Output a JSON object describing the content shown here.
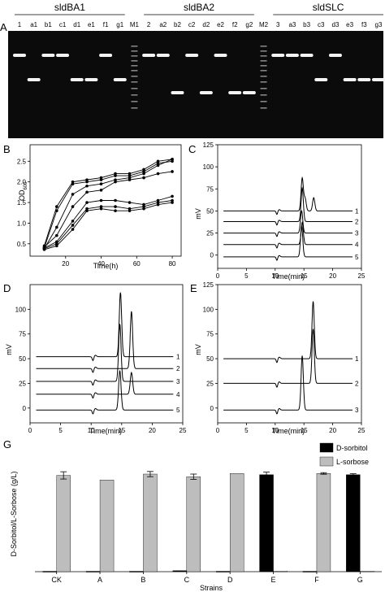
{
  "panel_letters": {
    "A": "A",
    "B": "B",
    "C": "C",
    "D": "D",
    "E": "E",
    "G": "G"
  },
  "gel": {
    "groups": [
      "sldBA1",
      "sldBA2",
      "sldSLC"
    ],
    "lanes": [
      "1",
      "a1",
      "b1",
      "c1",
      "d1",
      "e1",
      "f1",
      "g1",
      "M1",
      "2",
      "a2",
      "b2",
      "c2",
      "d2",
      "e2",
      "f2",
      "g2",
      "M2",
      "3",
      "a3",
      "b3",
      "c3",
      "d3",
      "e3",
      "f3",
      "g3"
    ],
    "band_level": [
      "high",
      "low",
      "high",
      "high",
      "low",
      "low",
      "high",
      "low",
      "marker",
      "high",
      "high",
      "low",
      "high",
      "low",
      "high",
      "low",
      "low",
      "marker",
      "high",
      "high",
      "high",
      "low",
      "high",
      "low",
      "low",
      "low"
    ]
  },
  "chart_data": [
    {
      "type": "line",
      "panel": "B",
      "xlabel": "Time(h)",
      "ylabel": "OD600",
      "xlim": [
        0,
        85
      ],
      "ylim": [
        0.2,
        2.9
      ],
      "xticks": [
        "20",
        "40",
        "60",
        "80"
      ],
      "yticks": [
        "0.5",
        "1.0",
        "1.5",
        "2.0",
        "2.5"
      ],
      "x": [
        8,
        15,
        24,
        32,
        40,
        48,
        56,
        64,
        72,
        80
      ],
      "series": [
        {
          "values": [
            0.45,
            1.4,
            2.0,
            2.05,
            2.1,
            2.2,
            2.2,
            2.3,
            2.5,
            2.55
          ]
        },
        {
          "values": [
            0.4,
            1.3,
            1.95,
            2.0,
            2.05,
            2.15,
            2.15,
            2.25,
            2.45,
            2.5
          ]
        },
        {
          "values": [
            0.38,
            0.9,
            1.7,
            1.9,
            1.95,
            2.05,
            2.1,
            2.2,
            2.4,
            2.55
          ]
        },
        {
          "values": [
            0.42,
            0.7,
            1.4,
            1.75,
            1.8,
            2.0,
            2.05,
            2.1,
            2.2,
            2.25
          ]
        },
        {
          "values": [
            0.4,
            0.55,
            1.05,
            1.5,
            1.55,
            1.55,
            1.5,
            1.45,
            1.55,
            1.65
          ]
        },
        {
          "values": [
            0.38,
            0.5,
            0.95,
            1.35,
            1.4,
            1.4,
            1.35,
            1.4,
            1.5,
            1.55
          ]
        },
        {
          "values": [
            0.36,
            0.45,
            0.85,
            1.3,
            1.35,
            1.3,
            1.3,
            1.35,
            1.45,
            1.5
          ]
        }
      ]
    },
    {
      "type": "line",
      "panel": "C",
      "xlabel": "Time(min)",
      "ylabel": "mV",
      "xlim": [
        0,
        25
      ],
      "ylim": [
        -15,
        125
      ],
      "xticks": [
        "0",
        "5",
        "10",
        "15",
        "20",
        "25"
      ],
      "yticks": [
        "0",
        "25",
        "50",
        "75",
        "100",
        "125"
      ],
      "trace_labels": [
        "1",
        "2",
        "3",
        "4",
        "5"
      ],
      "traces": [
        {
          "baseline": 50,
          "peaks": [
            [
              14.7,
              37
            ],
            [
              15.2,
              14
            ],
            [
              16.7,
              15
            ]
          ]
        },
        {
          "baseline": 38,
          "peaks": [
            [
              14.7,
              38
            ]
          ]
        },
        {
          "baseline": 25,
          "peaks": [
            [
              14.6,
              25
            ]
          ]
        },
        {
          "baseline": 12,
          "peaks": [
            [
              14.7,
              25
            ]
          ]
        },
        {
          "baseline": -2,
          "peaks": [
            [
              14.6,
              35
            ]
          ]
        }
      ]
    },
    {
      "type": "line",
      "panel": "D",
      "xlabel": "Time(min)",
      "ylabel": "mV",
      "xlim": [
        0,
        25
      ],
      "ylim": [
        -15,
        125
      ],
      "xticks": [
        "0",
        "5",
        "10",
        "15",
        "20",
        "25"
      ],
      "yticks": [
        "0",
        "25",
        "50",
        "75",
        "100"
      ],
      "trace_labels": [
        "1",
        "2",
        "3",
        "4",
        "5"
      ],
      "traces": [
        {
          "baseline": 52,
          "peaks": [
            [
              14.8,
              65
            ]
          ]
        },
        {
          "baseline": 40,
          "peaks": [
            [
              16.6,
              58
            ]
          ]
        },
        {
          "baseline": 27,
          "peaks": [
            [
              14.7,
              58
            ]
          ]
        },
        {
          "baseline": 14,
          "peaks": [
            [
              16.6,
              22
            ]
          ]
        },
        {
          "baseline": -2,
          "peaks": [
            [
              14.7,
              40
            ]
          ]
        }
      ]
    },
    {
      "type": "line",
      "panel": "E",
      "xlabel": "Time(min)",
      "ylabel": "mV",
      "xlim": [
        0,
        25
      ],
      "ylim": [
        -15,
        125
      ],
      "xticks": [
        "0",
        "5",
        "10",
        "15",
        "20",
        "25"
      ],
      "yticks": [
        "0",
        "25",
        "50",
        "75",
        "100",
        "125"
      ],
      "trace_labels": [
        "1",
        "2",
        "3"
      ],
      "traces": [
        {
          "baseline": 50,
          "peaks": [
            [
              16.6,
              58
            ]
          ]
        },
        {
          "baseline": 25,
          "peaks": [
            [
              16.6,
              55
            ]
          ]
        },
        {
          "baseline": -2,
          "peaks": [
            [
              14.7,
              55
            ]
          ]
        }
      ]
    },
    {
      "type": "bar",
      "panel": "G",
      "xlabel": "Strains",
      "ylabel": "D-Sorbitol/L-Sorbose (g/L)",
      "ylim": [
        0,
        100
      ],
      "categories": [
        "CK",
        "A",
        "B",
        "C",
        "D",
        "E",
        "F",
        "G"
      ],
      "series": [
        {
          "name": "D-sorbitol",
          "color": "#000000",
          "values": [
            0.3,
            0.3,
            0.3,
            0.8,
            0.3,
            74.5,
            0.3,
            74.5
          ],
          "errors": [
            0,
            0,
            0,
            0,
            0,
            2.0,
            0,
            0.8
          ]
        },
        {
          "name": "L-sorbose",
          "color": "#bdbdbd",
          "values": [
            74.0,
            70.5,
            75.0,
            73.0,
            75.5,
            0.5,
            75.5,
            0.5
          ],
          "errors": [
            2.8,
            0,
            2.0,
            2.0,
            0,
            0,
            0.6,
            0
          ]
        }
      ],
      "legend_position": "top-right"
    }
  ]
}
